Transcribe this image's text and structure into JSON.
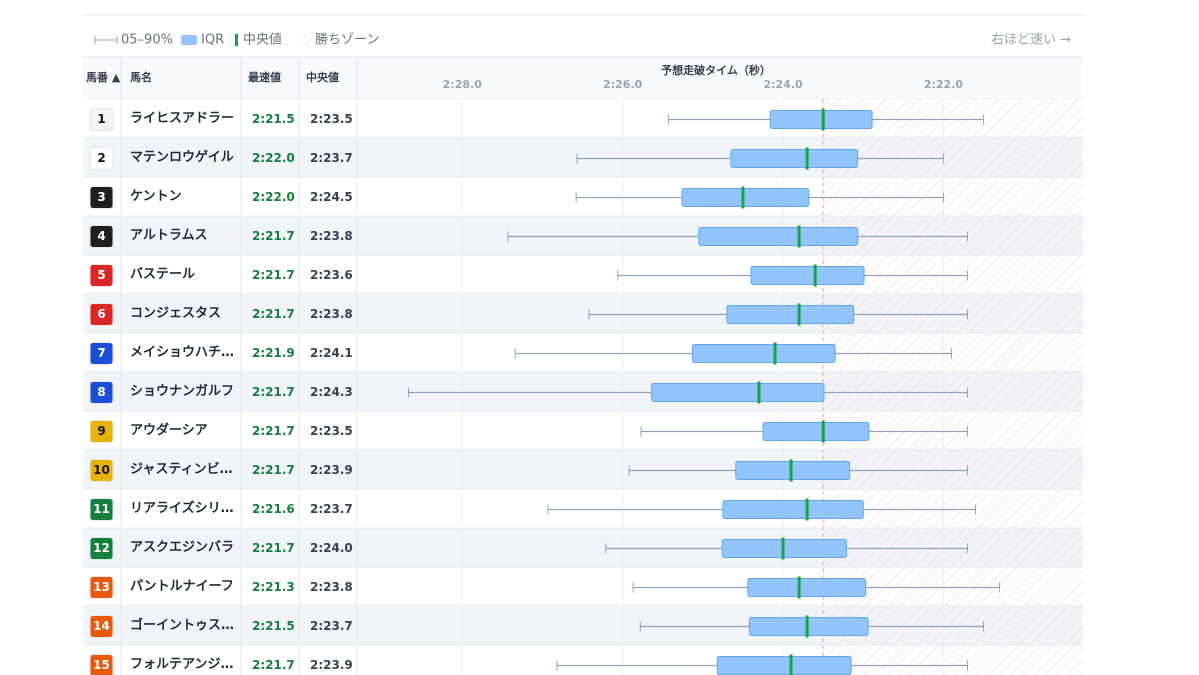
{
  "legend": {
    "whisker": "05–90%",
    "box": "IQR",
    "median": "中央値",
    "zone": "勝ちゾーン",
    "direction": "右ほど速い →"
  },
  "columns": {
    "number": "馬番 ▲",
    "name": "馬名",
    "best": "最速値",
    "median": "中央値"
  },
  "chart_data": {
    "type": "box",
    "title": "予想走破タイム（秒）",
    "xlim": [
      149.3,
      140.26
    ],
    "xticks": [
      {
        "value": 148,
        "label": "2:28.0"
      },
      {
        "value": 146,
        "label": "2:26.0"
      },
      {
        "value": 144,
        "label": "2:24.0"
      },
      {
        "value": 142,
        "label": "2:22.0"
      }
    ],
    "win_threshold": 143.5,
    "colors": {
      "box": "#93c5fd",
      "box_edge": "#60a5fa",
      "whisker": "#94a3b8",
      "median": "#16a34a",
      "zone": "#fca5a5"
    },
    "rows": [
      {
        "number": 1,
        "name": "ライヒスアドラー",
        "p90": 145.43,
        "q3": 144.16,
        "median": 143.5,
        "median_label": "2:23.5",
        "q1": 142.89,
        "best": 141.5,
        "best_label": "2:21.5"
      },
      {
        "number": 2,
        "name": "マテンロウゲイル",
        "p90": 146.57,
        "q3": 144.65,
        "median": 143.7,
        "median_label": "2:23.7",
        "q1": 143.07,
        "best": 142.0,
        "best_label": "2:22.0"
      },
      {
        "number": 3,
        "name": "ケントン",
        "p90": 146.58,
        "q3": 145.26,
        "median": 144.5,
        "median_label": "2:24.5",
        "q1": 143.68,
        "best": 142.0,
        "best_label": "2:22.0"
      },
      {
        "number": 4,
        "name": "アルトラムス",
        "p90": 147.43,
        "q3": 145.05,
        "median": 143.8,
        "median_label": "2:23.8",
        "q1": 143.07,
        "best": 141.7,
        "best_label": "2:21.7"
      },
      {
        "number": 5,
        "name": "バステール",
        "p90": 146.06,
        "q3": 144.4,
        "median": 143.6,
        "median_label": "2:23.6",
        "q1": 142.99,
        "best": 141.7,
        "best_label": "2:21.7"
      },
      {
        "number": 6,
        "name": "コンジェスタス",
        "p90": 146.42,
        "q3": 144.7,
        "median": 143.8,
        "median_label": "2:23.8",
        "q1": 143.12,
        "best": 141.7,
        "best_label": "2:21.7"
      },
      {
        "number": 7,
        "name": "メイショウハチ…",
        "p90": 147.34,
        "q3": 145.13,
        "median": 144.1,
        "median_label": "2:24.1",
        "q1": 143.35,
        "best": 141.9,
        "best_label": "2:21.9"
      },
      {
        "number": 8,
        "name": "ショウナンガルフ",
        "p90": 148.67,
        "q3": 145.64,
        "median": 144.3,
        "median_label": "2:24.3",
        "q1": 143.49,
        "best": 141.7,
        "best_label": "2:21.7"
      },
      {
        "number": 9,
        "name": "アウダーシア",
        "p90": 145.77,
        "q3": 144.25,
        "median": 143.5,
        "median_label": "2:23.5",
        "q1": 142.93,
        "best": 141.7,
        "best_label": "2:21.7"
      },
      {
        "number": 10,
        "name": "ジャスティンビ…",
        "p90": 145.92,
        "q3": 144.59,
        "median": 143.9,
        "median_label": "2:23.9",
        "q1": 143.17,
        "best": 141.7,
        "best_label": "2:21.7"
      },
      {
        "number": 11,
        "name": "リアライズシリ…",
        "p90": 146.93,
        "q3": 144.75,
        "median": 143.7,
        "median_label": "2:23.7",
        "q1": 143.0,
        "best": 141.6,
        "best_label": "2:21.6"
      },
      {
        "number": 12,
        "name": "アスクエジンバラ",
        "p90": 146.21,
        "q3": 144.76,
        "median": 144.0,
        "median_label": "2:24.0",
        "q1": 143.21,
        "best": 141.7,
        "best_label": "2:21.7"
      },
      {
        "number": 13,
        "name": "パントルナイーフ",
        "p90": 145.87,
        "q3": 144.44,
        "median": 143.8,
        "median_label": "2:23.8",
        "q1": 142.97,
        "best": 141.3,
        "best_label": "2:21.3"
      },
      {
        "number": 14,
        "name": "ゴーイントゥス…",
        "p90": 145.78,
        "q3": 144.42,
        "median": 143.7,
        "median_label": "2:23.7",
        "q1": 142.94,
        "best": 141.5,
        "best_label": "2:21.5"
      },
      {
        "number": 15,
        "name": "フォルテアンジ…",
        "p90": 146.82,
        "q3": 144.82,
        "median": 143.9,
        "median_label": "2:23.9",
        "q1": 143.15,
        "best": 141.7,
        "best_label": "2:21.7"
      }
    ]
  }
}
